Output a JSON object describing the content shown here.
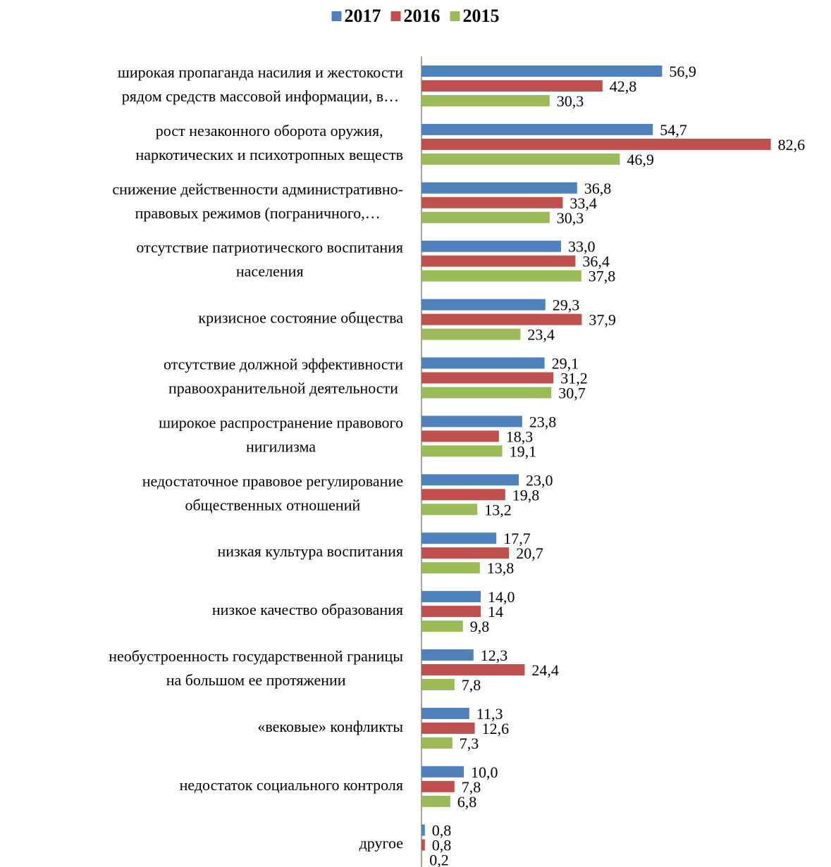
{
  "chart_data": {
    "type": "bar",
    "orientation": "horizontal",
    "categories": [
      "широкая пропаганда насилия и жестокости\nрядом средств массовой информации, в…",
      "рост незаконного оборота оружия,\nнаркотических и психотропных веществ",
      "снижение действенности административно-\nправовых режимов (пограничного,…",
      "отсутствие патриотического воспитания\nнаселения",
      "кризисное состояние общества",
      "отсутствие должной эффективности\nправоохранительной деятельности",
      "широкое распространение правового\nнигилизма",
      "недостаточное правовое регулирование\nобщественных отношений",
      "низкая культура воспитания",
      "низкое качество образования",
      "необустроенность государственной границы\nна большом ее протяжении",
      "«вековые» конфликты",
      "недостаток социального контроля",
      "другое"
    ],
    "series": [
      {
        "name": "2017",
        "color": "#4f81bd",
        "values": [
          56.9,
          54.7,
          36.8,
          33.0,
          29.3,
          29.1,
          23.8,
          23.0,
          17.7,
          14.0,
          12.3,
          11.3,
          10.0,
          0.8
        ],
        "value_labels": [
          "56,9",
          "54,7",
          "36,8",
          "33,0",
          "29,3",
          "29,1",
          "23,8",
          "23,0",
          "17,7",
          "14,0",
          "12,3",
          "11,3",
          "10,0",
          "0,8"
        ]
      },
      {
        "name": "2016",
        "color": "#c0504d",
        "values": [
          42.8,
          82.6,
          33.4,
          36.4,
          37.9,
          31.2,
          18.3,
          19.8,
          20.7,
          14,
          24.4,
          12.6,
          7.8,
          0.8
        ],
        "value_labels": [
          "42,8",
          "82,6",
          "33,4",
          "36,4",
          "37,9",
          "31,2",
          "18,3",
          "19,8",
          "20,7",
          "14",
          "24,4",
          "12,6",
          "7,8",
          "0,8"
        ]
      },
      {
        "name": "2015",
        "color": "#9bbb59",
        "values": [
          30.3,
          46.9,
          30.3,
          37.8,
          23.4,
          30.7,
          19.1,
          13.2,
          13.8,
          9.8,
          7.8,
          7.3,
          6.8,
          0.2
        ],
        "value_labels": [
          "30,3",
          "46,9",
          "30,3",
          "37,8",
          "23,4",
          "30,7",
          "19,1",
          "13,2",
          "13,8",
          "9,8",
          "7,8",
          "7,3",
          "6,8",
          "0,2"
        ]
      }
    ],
    "xlim": [
      0,
      85
    ],
    "legend": "top"
  }
}
